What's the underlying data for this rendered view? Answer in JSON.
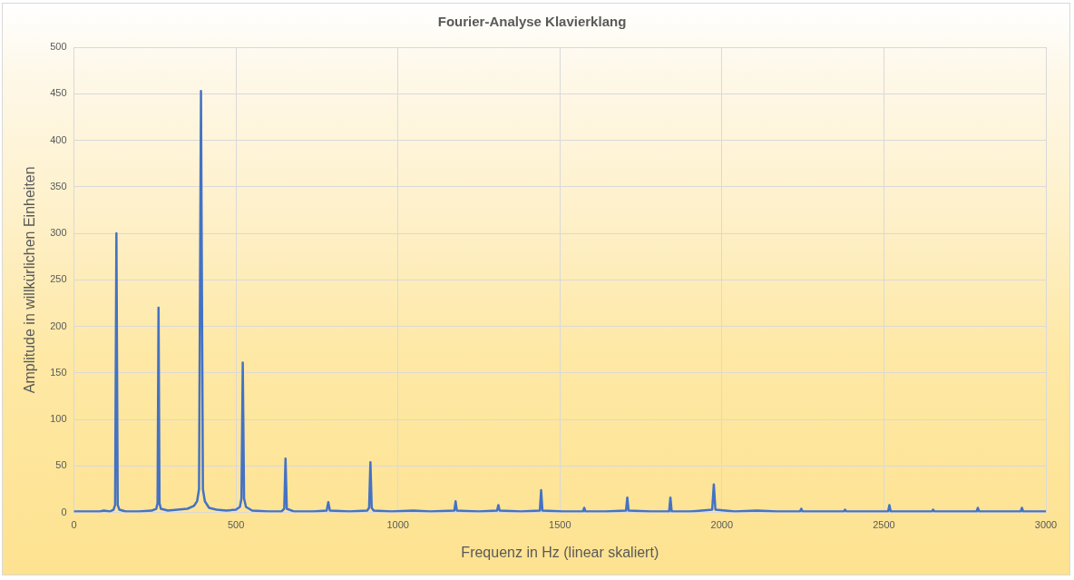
{
  "chart_data": {
    "type": "line",
    "title": "Fourier-Analyse Klavierklang",
    "xlabel": "Frequenz in Hz (linear skaliert)",
    "ylabel": "Amplitude in willkürlichen Einheiten",
    "x": [
      0,
      40,
      80,
      92,
      110,
      122,
      127,
      131,
      135,
      140,
      160,
      200,
      240,
      254,
      258,
      261,
      264,
      268,
      290,
      320,
      350,
      370,
      380,
      386,
      392,
      398,
      404,
      417,
      440,
      470,
      500,
      512,
      517,
      521,
      525,
      531,
      550,
      600,
      640,
      649,
      653,
      657,
      680,
      740,
      780,
      785,
      790,
      850,
      905,
      911,
      915,
      919,
      925,
      980,
      1047,
      1100,
      1174,
      1178,
      1182,
      1250,
      1306,
      1310,
      1314,
      1380,
      1438,
      1442,
      1446,
      1510,
      1571,
      1575,
      1579,
      1640,
      1704,
      1708,
      1712,
      1780,
      1837,
      1841,
      1845,
      1900,
      1970,
      1975,
      1980,
      2040,
      2108,
      2170,
      2241,
      2245,
      2249,
      2310,
      2376,
      2380,
      2384,
      2450,
      2513,
      2517,
      2521,
      2590,
      2648,
      2652,
      2656,
      2720,
      2786,
      2790,
      2794,
      2860,
      2922,
      2926,
      2930,
      3000
    ],
    "series": [
      {
        "color": "#4472c4",
        "values": [
          1,
          1,
          1,
          2,
          1,
          3,
          8,
          300,
          8,
          3,
          1,
          1,
          2,
          4,
          10,
          220,
          10,
          4,
          2,
          3,
          4,
          7,
          12,
          25,
          453,
          25,
          12,
          5,
          3,
          2,
          3,
          6,
          15,
          161,
          15,
          6,
          2,
          1,
          1,
          4,
          58,
          4,
          1,
          1,
          2,
          11,
          2,
          1,
          2,
          5,
          54,
          5,
          2,
          1,
          2,
          1,
          2,
          12,
          2,
          1,
          2,
          8,
          2,
          1,
          2,
          24,
          2,
          1,
          1,
          5,
          1,
          1,
          2,
          16,
          2,
          1,
          1,
          16,
          1,
          1,
          3,
          30,
          3,
          1,
          2,
          1,
          1,
          4,
          1,
          1,
          1,
          3,
          1,
          1,
          1,
          8,
          1,
          1,
          1,
          3,
          1,
          1,
          1,
          5,
          1,
          1,
          1,
          5,
          1,
          1
        ]
      }
    ],
    "xlim": [
      0,
      3000
    ],
    "xticks": [
      0,
      500,
      1000,
      1500,
      2000,
      2500,
      3000
    ],
    "ylim": [
      0,
      500
    ],
    "yticks": [
      0,
      50,
      100,
      150,
      200,
      250,
      300,
      350,
      400,
      450,
      500
    ],
    "grid": true,
    "marker": "none",
    "line_style": "solid"
  }
}
